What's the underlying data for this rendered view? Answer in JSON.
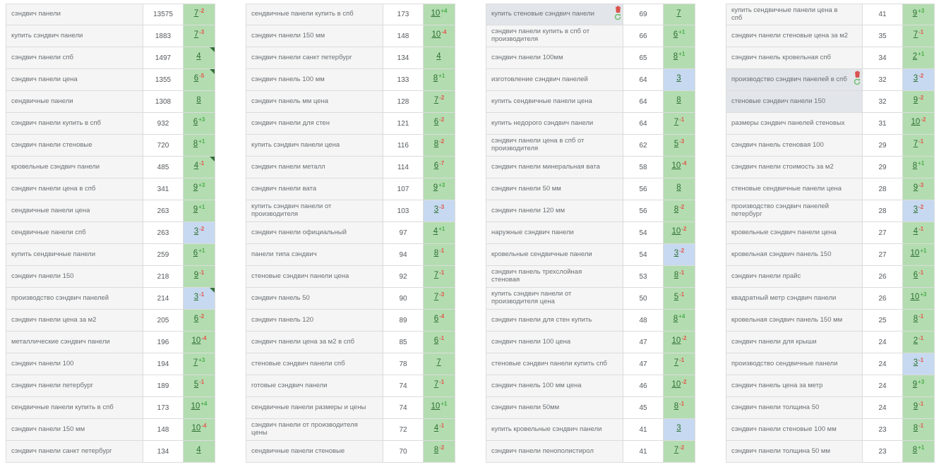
{
  "colors": {
    "cell_green": "#b3ddb0",
    "cell_blue": "#c6d9f0",
    "delta_up": "#4cae4c",
    "delta_down": "#e2574c",
    "position_link": "#2c6e31",
    "keyword_cell_bg": "#f5f5f5",
    "selected_cell_bg": "#e2e5e9"
  },
  "columns": [
    {
      "rows": [
        {
          "keyword": "сэндвич панели",
          "freq": 13575,
          "pos": 7,
          "delta": "-2",
          "hl": "green"
        },
        {
          "keyword": "купить сэндвич панели",
          "freq": 1883,
          "pos": 7,
          "delta": "-3",
          "hl": "green"
        },
        {
          "keyword": "сэндвич панели спб",
          "freq": 1497,
          "pos": 4,
          "delta": "",
          "hl": "green",
          "corner": true
        },
        {
          "keyword": "сэндвич панели цена",
          "freq": 1355,
          "pos": 6,
          "delta": "-5",
          "hl": "green",
          "corner": true
        },
        {
          "keyword": "сендвичные панели",
          "freq": 1308,
          "pos": 8,
          "delta": "",
          "hl": "green"
        },
        {
          "keyword": "сэндвич панели купить в спб",
          "freq": 932,
          "pos": 6,
          "delta": "+3",
          "hl": "green"
        },
        {
          "keyword": "сэндвич панели стеновые",
          "freq": 720,
          "pos": 8,
          "delta": "+1",
          "hl": "green"
        },
        {
          "keyword": "кровельные сэндвич панели",
          "freq": 485,
          "pos": 4,
          "delta": "-1",
          "hl": "green",
          "corner": true
        },
        {
          "keyword": "сэндвич панели цена в спб",
          "freq": 341,
          "pos": 9,
          "delta": "+3",
          "hl": "green"
        },
        {
          "keyword": "сендвичные панели цена",
          "freq": 263,
          "pos": 9,
          "delta": "+1",
          "hl": "green"
        },
        {
          "keyword": "сендвичные панели спб",
          "freq": 263,
          "pos": 3,
          "delta": "-2",
          "hl": "blue"
        },
        {
          "keyword": "купить сендвичные панели",
          "freq": 259,
          "pos": 6,
          "delta": "+1",
          "hl": "green"
        },
        {
          "keyword": "сэндвич панели 150",
          "freq": 218,
          "pos": 9,
          "delta": "-1",
          "hl": "green"
        },
        {
          "keyword": "производство сэндвич панелей",
          "freq": 214,
          "pos": 3,
          "delta": "-1",
          "hl": "blue",
          "corner": true
        },
        {
          "keyword": "сэндвич панели цена за м2",
          "freq": 205,
          "pos": 6,
          "delta": "-2",
          "hl": "green"
        },
        {
          "keyword": "металлические сэндвич панели",
          "freq": 196,
          "pos": 10,
          "delta": "-4",
          "hl": "green"
        },
        {
          "keyword": "сэндвич панели 100",
          "freq": 194,
          "pos": 7,
          "delta": "+3",
          "hl": "green"
        },
        {
          "keyword": "сэндвич панели петербург",
          "freq": 189,
          "pos": 5,
          "delta": "-1",
          "hl": "green"
        },
        {
          "keyword": "сендвичные панели купить в спб",
          "freq": 173,
          "pos": 10,
          "delta": "+4",
          "hl": "green"
        },
        {
          "keyword": "сэндвич панели 150 мм",
          "freq": 148,
          "pos": 10,
          "delta": "-4",
          "hl": "green"
        },
        {
          "keyword": "сэндвич панели санкт петербург",
          "freq": 134,
          "pos": 4,
          "delta": "",
          "hl": "green"
        }
      ]
    },
    {
      "rows": [
        {
          "keyword": "сендвичные панели купить в спб",
          "freq": 173,
          "pos": 10,
          "delta": "+4",
          "hl": "green"
        },
        {
          "keyword": "сэндвич панели 150 мм",
          "freq": 148,
          "pos": 10,
          "delta": "-4",
          "hl": "green"
        },
        {
          "keyword": "сэндвич панели санкт петербург",
          "freq": 134,
          "pos": 4,
          "delta": "",
          "hl": "green"
        },
        {
          "keyword": "сэндвич панель 100 мм",
          "freq": 133,
          "pos": 8,
          "delta": "+1",
          "hl": "green"
        },
        {
          "keyword": "сэндвич панель мм цена",
          "freq": 128,
          "pos": 7,
          "delta": "-2",
          "hl": "green"
        },
        {
          "keyword": "сэндвич панели для стен",
          "freq": 121,
          "pos": 6,
          "delta": "-2",
          "hl": "green"
        },
        {
          "keyword": "купить сэндвич панели цена",
          "freq": 116,
          "pos": 8,
          "delta": "-2",
          "hl": "green"
        },
        {
          "keyword": "сэндвич панели металл",
          "freq": 114,
          "pos": 6,
          "delta": "-7",
          "hl": "green"
        },
        {
          "keyword": "сэндвич панели вата",
          "freq": 107,
          "pos": 9,
          "delta": "+3",
          "hl": "green"
        },
        {
          "keyword": "купить сэндвич панели от производителя",
          "freq": 103,
          "pos": 3,
          "delta": "-3",
          "hl": "blue"
        },
        {
          "keyword": "сэндвич панели официальный",
          "freq": 97,
          "pos": 4,
          "delta": "+1",
          "hl": "green"
        },
        {
          "keyword": "панели типа сэндвич",
          "freq": 94,
          "pos": 8,
          "delta": "-1",
          "hl": "green"
        },
        {
          "keyword": "стеновые сэндвич панели цена",
          "freq": 92,
          "pos": 7,
          "delta": "-1",
          "hl": "green"
        },
        {
          "keyword": "сэндвич панель 50",
          "freq": 90,
          "pos": 7,
          "delta": "-3",
          "hl": "green"
        },
        {
          "keyword": "сэндвич панель 120",
          "freq": 89,
          "pos": 6,
          "delta": "-4",
          "hl": "green"
        },
        {
          "keyword": "сэндвич панели цена за м2 в спб",
          "freq": 85,
          "pos": 6,
          "delta": "-1",
          "hl": "green"
        },
        {
          "keyword": "стеновые сэндвич панели спб",
          "freq": 78,
          "pos": 7,
          "delta": "",
          "hl": "green"
        },
        {
          "keyword": "готовые сэндвич панели",
          "freq": 74,
          "pos": 7,
          "delta": "-1",
          "hl": "green"
        },
        {
          "keyword": "сендвичные панели размеры и цены",
          "freq": 74,
          "pos": 10,
          "delta": "+1",
          "hl": "green"
        },
        {
          "keyword": "сэндвич панели от производителя цены",
          "freq": 72,
          "pos": 4,
          "delta": "-1",
          "hl": "green"
        },
        {
          "keyword": "сендвичные панели стеновые",
          "freq": 70,
          "pos": 8,
          "delta": "-2",
          "hl": "green"
        }
      ]
    },
    {
      "rows": [
        {
          "keyword": "купить стеновые сэндвич панели",
          "freq": 69,
          "pos": 7,
          "delta": "",
          "hl": "green",
          "icons": true,
          "sel": true
        },
        {
          "keyword": "сэндвич панели купить в спб от производителя",
          "freq": 66,
          "pos": 6,
          "delta": "+1",
          "hl": "green"
        },
        {
          "keyword": "сэндвич панели 100мм",
          "freq": 65,
          "pos": 8,
          "delta": "+1",
          "hl": "green"
        },
        {
          "keyword": "изготовление сэндвич панелей",
          "freq": 64,
          "pos": 3,
          "delta": "",
          "hl": "blue"
        },
        {
          "keyword": "купить сендвичные панели цена",
          "freq": 64,
          "pos": 8,
          "delta": "",
          "hl": "green"
        },
        {
          "keyword": "купить недорого сэндвич панели",
          "freq": 64,
          "pos": 7,
          "delta": "-1",
          "hl": "green"
        },
        {
          "keyword": "сэндвич панели цена в спб от производителя",
          "freq": 62,
          "pos": 5,
          "delta": "-3",
          "hl": "green"
        },
        {
          "keyword": "сэндвич панели минеральная вата",
          "freq": 58,
          "pos": 10,
          "delta": "-4",
          "hl": "green"
        },
        {
          "keyword": "сэндвич панели 50 мм",
          "freq": 56,
          "pos": 8,
          "delta": "",
          "hl": "green"
        },
        {
          "keyword": "сэндвич панели 120 мм",
          "freq": 56,
          "pos": 8,
          "delta": "-2",
          "hl": "green"
        },
        {
          "keyword": "наружные сэндвич панели",
          "freq": 54,
          "pos": 10,
          "delta": "-2",
          "hl": "green"
        },
        {
          "keyword": "кровельные сендвичные панели",
          "freq": 54,
          "pos": 3,
          "delta": "-2",
          "hl": "blue"
        },
        {
          "keyword": "сэндвич панель трехслойная стеновая",
          "freq": 53,
          "pos": 8,
          "delta": "-1",
          "hl": "green"
        },
        {
          "keyword": "купить сэндвич панели от производителя цена",
          "freq": 50,
          "pos": 5,
          "delta": "-1",
          "hl": "green"
        },
        {
          "keyword": "сэндвич панели для стен купить",
          "freq": 48,
          "pos": 8,
          "delta": "+4",
          "hl": "green"
        },
        {
          "keyword": "сэндвич панели 100 цена",
          "freq": 47,
          "pos": 10,
          "delta": "-2",
          "hl": "green"
        },
        {
          "keyword": "стеновые сэндвич панели купить спб",
          "freq": 47,
          "pos": 7,
          "delta": "-1",
          "hl": "green"
        },
        {
          "keyword": "сэндвич панель 100 мм цена",
          "freq": 46,
          "pos": 10,
          "delta": "-2",
          "hl": "green"
        },
        {
          "keyword": "сэндвич панели 50мм",
          "freq": 45,
          "pos": 8,
          "delta": "-1",
          "hl": "green"
        },
        {
          "keyword": "купить кровельные сэндвич панели",
          "freq": 41,
          "pos": 3,
          "delta": "",
          "hl": "blue"
        },
        {
          "keyword": "сэндвич панели пенополистирол",
          "freq": 41,
          "pos": 7,
          "delta": "-2",
          "hl": "green"
        }
      ]
    },
    {
      "rows": [
        {
          "keyword": "купить сендвичные панели цена в спб",
          "freq": 41,
          "pos": 9,
          "delta": "+3",
          "hl": "green"
        },
        {
          "keyword": "сэндвич панели стеновые цена за м2",
          "freq": 35,
          "pos": 7,
          "delta": "-1",
          "hl": "green"
        },
        {
          "keyword": "сэндвич панель кровельная спб",
          "freq": 34,
          "pos": 2,
          "delta": "+1",
          "hl": "green"
        },
        {
          "keyword": "производство сэндвич панелей в спб",
          "freq": 32,
          "pos": 3,
          "delta": "-2",
          "hl": "blue",
          "icons": true,
          "sel": true
        },
        {
          "keyword": "стеновые сэндвич панели 150",
          "freq": 32,
          "pos": 9,
          "delta": "-2",
          "hl": "green",
          "sel": true
        },
        {
          "keyword": "размеры сэндвич панелей стеновых",
          "freq": 31,
          "pos": 10,
          "delta": "-2",
          "hl": "green"
        },
        {
          "keyword": "сэндвич панель стеновая 100",
          "freq": 29,
          "pos": 7,
          "delta": "-1",
          "hl": "green"
        },
        {
          "keyword": "сэндвич панели стоимость за м2",
          "freq": 29,
          "pos": 8,
          "delta": "+1",
          "hl": "green"
        },
        {
          "keyword": "стеновые сендвичные панели цена",
          "freq": 28,
          "pos": 9,
          "delta": "-3",
          "hl": "green"
        },
        {
          "keyword": "производство сэндвич панелей петербург",
          "freq": 28,
          "pos": 3,
          "delta": "-2",
          "hl": "blue"
        },
        {
          "keyword": "кровельные сэндвич панели цена",
          "freq": 27,
          "pos": 4,
          "delta": "-1",
          "hl": "green"
        },
        {
          "keyword": "кровельная сэндвич панель 150",
          "freq": 27,
          "pos": 10,
          "delta": "+1",
          "hl": "green"
        },
        {
          "keyword": "сэндвич панели прайс",
          "freq": 26,
          "pos": 6,
          "delta": "-1",
          "hl": "green"
        },
        {
          "keyword": "квадратный метр сэндвич панели",
          "freq": 26,
          "pos": 10,
          "delta": "+3",
          "hl": "green"
        },
        {
          "keyword": "кровельная сэндвич панель 150 мм",
          "freq": 25,
          "pos": 8,
          "delta": "-1",
          "hl": "green"
        },
        {
          "keyword": "сэндвич панели для крыши",
          "freq": 24,
          "pos": 2,
          "delta": "-1",
          "hl": "green"
        },
        {
          "keyword": "производство сендвичные панели",
          "freq": 24,
          "pos": 3,
          "delta": "-1",
          "hl": "blue"
        },
        {
          "keyword": "сэндвич панель цена за метр",
          "freq": 24,
          "pos": 9,
          "delta": "+3",
          "hl": "green"
        },
        {
          "keyword": "сэндвич панели толщина 50",
          "freq": 24,
          "pos": 9,
          "delta": "-1",
          "hl": "green"
        },
        {
          "keyword": "сэндвич панели стеновые 100 мм",
          "freq": 23,
          "pos": 8,
          "delta": "-1",
          "hl": "green"
        },
        {
          "keyword": "сэндвич панели толщина 50 мм",
          "freq": 23,
          "pos": 8,
          "delta": "+1",
          "hl": "green"
        }
      ]
    }
  ]
}
